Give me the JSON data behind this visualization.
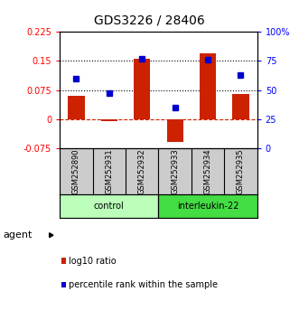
{
  "title": "GDS3226 / 28406",
  "samples": [
    "GSM252890",
    "GSM252931",
    "GSM252932",
    "GSM252933",
    "GSM252934",
    "GSM252935"
  ],
  "log10_ratio": [
    0.06,
    -0.005,
    0.155,
    -0.06,
    0.17,
    0.065
  ],
  "percentile_rank": [
    60,
    47,
    77,
    35,
    76,
    63
  ],
  "groups": [
    {
      "label": "control",
      "indices": [
        0,
        1,
        2
      ],
      "color": "#bbffbb"
    },
    {
      "label": "interleukin-22",
      "indices": [
        3,
        4,
        5
      ],
      "color": "#44dd44"
    }
  ],
  "bar_color": "#cc2200",
  "dot_color": "#0000cc",
  "ylim_left": [
    -0.075,
    0.225
  ],
  "ylim_right": [
    0,
    100
  ],
  "yticks_left": [
    -0.075,
    0,
    0.075,
    0.15,
    0.225
  ],
  "ytick_labels_left": [
    "-0.075",
    "0",
    "0.075",
    "0.15",
    "0.225"
  ],
  "yticks_right": [
    0,
    25,
    50,
    75,
    100
  ],
  "ytick_labels_right": [
    "0",
    "25",
    "50",
    "75",
    "100%"
  ],
  "hlines": [
    0.075,
    0.15
  ],
  "zero_line": 0,
  "legend_items": [
    {
      "color": "#cc2200",
      "label": "log10 ratio"
    },
    {
      "color": "#0000cc",
      "label": "percentile rank within the sample"
    }
  ],
  "agent_label": "agent"
}
